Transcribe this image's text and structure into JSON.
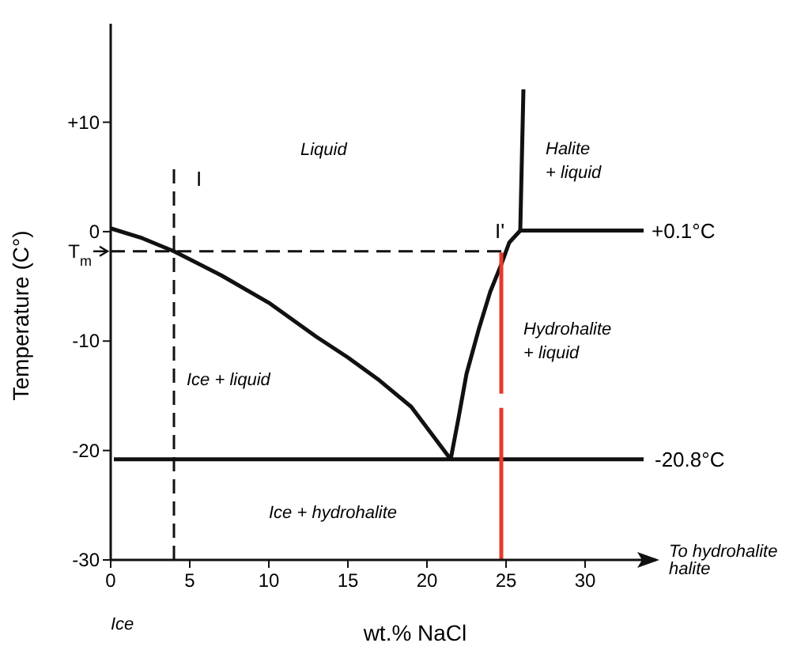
{
  "chart_data": {
    "type": "line",
    "xlabel": "wt.% NaCl",
    "ylabel": "Temperature (C°)",
    "xlim": [
      0,
      34.5
    ],
    "xticks": [
      0,
      5,
      10,
      15,
      20,
      25,
      30
    ],
    "ylim": [
      -30,
      19
    ],
    "yticks": [
      {
        "value": 10,
        "label": "+10"
      },
      0,
      -10,
      -20,
      -30
    ],
    "grid": false,
    "marker": "none",
    "series": [
      {
        "color": "#111111",
        "x": [
          0,
          2,
          4,
          7,
          10,
          13,
          15,
          17,
          19,
          21.5
        ],
        "values": [
          0.3,
          -0.6,
          -1.8,
          -4,
          -6.5,
          -9.6,
          -11.5,
          -13.6,
          -16,
          -20.8
        ]
      },
      {
        "color": "#111111",
        "x": [
          21.5,
          22,
          22.5,
          23.3,
          24,
          24.7,
          25.2,
          25.9
        ],
        "values": [
          -20.8,
          -17,
          -13,
          -8.8,
          -5.5,
          -3,
          -1,
          0.1
        ]
      },
      {
        "color": "#111111",
        "x": [
          25.9,
          26.1
        ],
        "values": [
          0.1,
          13
        ]
      },
      {
        "color": "#111111",
        "x": [
          25.9,
          33.7
        ],
        "values": [
          0.1,
          0.1
        ]
      },
      {
        "color": "#111111",
        "x": [
          0.2,
          33.7
        ],
        "values": [
          -20.8,
          -20.8
        ]
      },
      {
        "color": "#111111",
        "line_style": "dashed",
        "x": [
          4,
          4
        ],
        "values": [
          -30,
          6.1
        ]
      },
      {
        "color": "#111111",
        "line_style": "dashed",
        "x": [
          0,
          25
        ],
        "values": [
          -1.8,
          -1.8
        ]
      },
      {
        "color": "#e8392c",
        "x": [
          24.7,
          24.7
        ],
        "values": [
          -30,
          -16.1
        ]
      },
      {
        "color": "#e8392c",
        "x": [
          24.7,
          24.7
        ],
        "values": [
          -14.8,
          -1.9
        ]
      }
    ],
    "annotations": [
      "Liquid",
      "Ice + liquid",
      "Ice + hydrohalite",
      "Halite\n+ liquid",
      "Hydrohalite\n+ liquid",
      "I",
      "I'",
      "+0.1°C",
      "-20.8°C",
      "Ice",
      "To hydrohalite\nhalite",
      "T$_{m}$"
    ]
  }
}
